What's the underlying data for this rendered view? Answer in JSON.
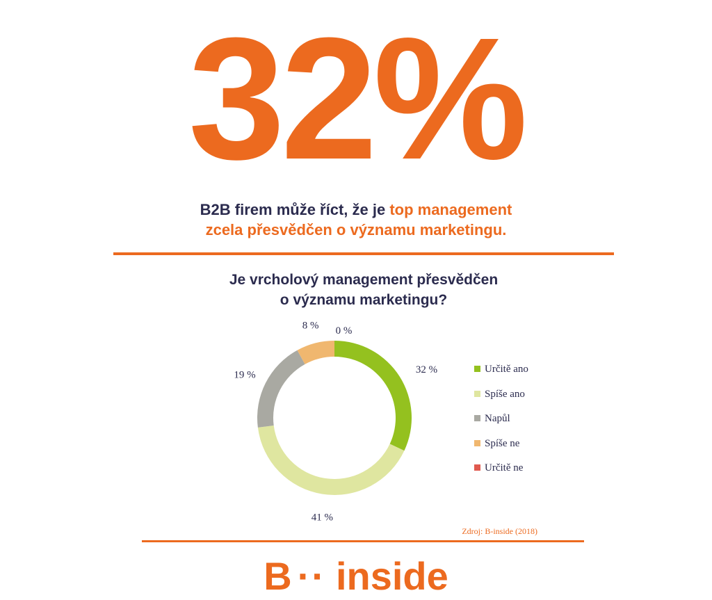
{
  "hero": {
    "percent": "32%"
  },
  "headline": {
    "part1": "B2B firem může říct, že je ",
    "highlight1": "top management",
    "highlight2": "zcela přesvědčen o významu marketingu."
  },
  "question": {
    "line1": "Je vrcholový management přesvědčen",
    "line2": "o významu marketingu?"
  },
  "chart_data": {
    "type": "pie",
    "donut": true,
    "categories": [
      "Určitě ano",
      "Spíše ano",
      "Napůl",
      "Spíše ne",
      "Určitě ne"
    ],
    "values": [
      32,
      41,
      19,
      8,
      0
    ],
    "data_labels": [
      "32 %",
      "41 %",
      "19 %",
      "8 %",
      "0 %"
    ],
    "colors": [
      "#94c11f",
      "#dfe6a0",
      "#a9a9a2",
      "#f0b76f",
      "#e05a4f"
    ],
    "legend_position": "right",
    "start_angle": "top",
    "direction": "clockwise"
  },
  "source": "Zdroj: B-inside (2018)",
  "logo": {
    "left": "B",
    "dots": "··",
    "right": "inside"
  }
}
